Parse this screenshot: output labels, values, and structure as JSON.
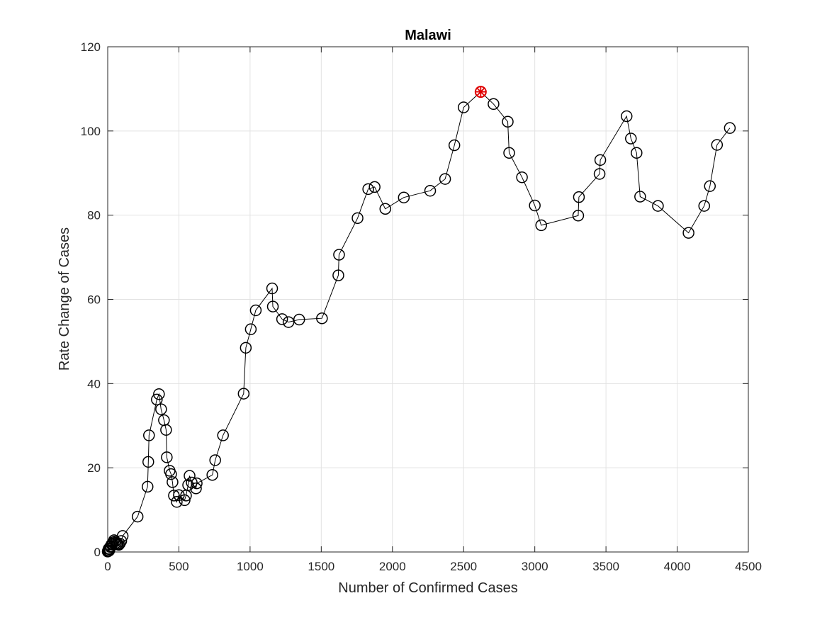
{
  "chart_data": {
    "type": "line",
    "title": "Malawi",
    "xlabel": "Number of Confirmed Cases",
    "ylabel": "Rate Change of Cases",
    "xlim": [
      0,
      4500
    ],
    "ylim": [
      0,
      120
    ],
    "x_ticks": [
      "0",
      "500",
      "1000",
      "1500",
      "2000",
      "2500",
      "3000",
      "3500",
      "4000",
      "4500"
    ],
    "y_ticks": [
      "0",
      "20",
      "40",
      "60",
      "80",
      "100",
      "120"
    ],
    "grid": true,
    "marker": "circle",
    "line_color": "#000000",
    "highlight_color": "#e00000",
    "series": [
      {
        "x": [
          0,
          2,
          4,
          6,
          8,
          10,
          14,
          17,
          22,
          27,
          32,
          38,
          45,
          52,
          58,
          65,
          70,
          78,
          85,
          95,
          105,
          210,
          280,
          285,
          290,
          345,
          360,
          375,
          395,
          410,
          415,
          435,
          445,
          455,
          465,
          485,
          500,
          540,
          550,
          565,
          575,
          590,
          620,
          625,
          735,
          755,
          810,
          955,
          970,
          1005,
          1040,
          1155,
          1160,
          1225,
          1270,
          1345,
          1505,
          1620,
          1625,
          1755,
          1830,
          1875,
          1950,
          2080,
          2265,
          2370,
          2435,
          2500,
          2620,
          2710,
          2810,
          2820,
          2910,
          3000,
          3045,
          3305,
          3310,
          3455,
          3460,
          3645,
          3675,
          3715,
          3740,
          3865,
          4080,
          4190,
          4230,
          4280,
          4370
        ],
        "y": [
          0.1,
          0.3,
          0.4,
          0.7,
          0.8,
          0.3,
          0.7,
          1.2,
          1.4,
          1.8,
          2.0,
          2.3,
          2.8,
          2.5,
          2.2,
          2.0,
          1.8,
          1.7,
          2.0,
          2.6,
          3.8,
          8.4,
          15.5,
          21.4,
          27.7,
          36.2,
          37.5,
          33.9,
          31.3,
          29.0,
          22.5,
          19.3,
          18.5,
          16.6,
          13.4,
          11.9,
          13.5,
          12.3,
          13.4,
          15.9,
          18.1,
          16.5,
          15.1,
          16.3,
          18.3,
          21.8,
          27.7,
          37.6,
          48.5,
          52.9,
          57.4,
          62.6,
          58.3,
          55.3,
          54.6,
          55.2,
          55.5,
          65.7,
          70.6,
          79.3,
          86.2,
          86.7,
          81.5,
          84.2,
          85.8,
          88.6,
          96.6,
          105.6,
          109.3,
          106.4,
          102.2,
          94.8,
          89.0,
          82.3,
          77.6,
          79.9,
          84.3,
          89.8,
          93.1,
          103.5,
          98.2,
          94.8,
          84.4,
          82.2,
          75.8,
          82.2,
          86.9,
          96.7,
          100.7
        ]
      }
    ],
    "highlight_point": {
      "x": 2620,
      "y": 109.3
    }
  }
}
